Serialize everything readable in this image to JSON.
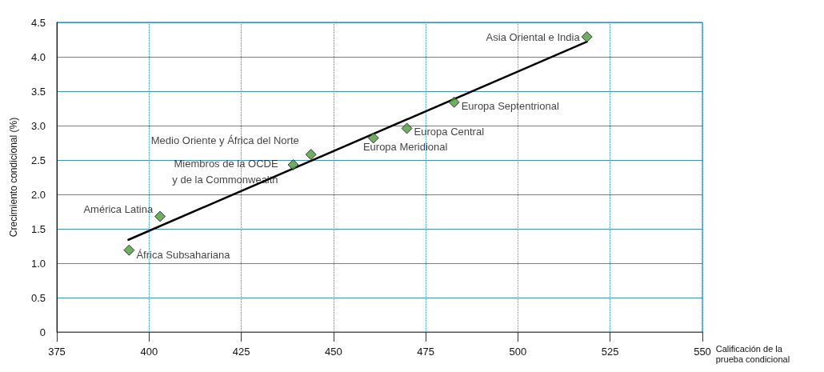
{
  "chart_data": {
    "type": "scatter",
    "xlabel": "Calificación de la\nprueba condicional",
    "ylabel": "Crecimiento condicional (%)",
    "series": [
      {
        "color": "#4a9a3a",
        "x": [
          394.6,
          403.0,
          439.1,
          443.9,
          460.8,
          469.9,
          482.7,
          518.7
        ],
        "values": [
          1.19,
          1.68,
          2.43,
          2.58,
          2.82,
          2.96,
          3.34,
          4.29
        ]
      },
      {
        "type": "line",
        "color": "#000000",
        "marker": "none",
        "x": [
          394.4,
          518.7
        ],
        "values": [
          1.34,
          4.22
        ]
      }
    ],
    "annotations": [
      {
        "text": "África Subsahariana",
        "x": 394.6,
        "y": 1.19
      },
      {
        "text": "América Latina",
        "x": 403.0,
        "y": 1.68
      },
      {
        "text": "Miembros de la OCDE\ny de la Commonwealth",
        "x": 439.1,
        "y": 2.43
      },
      {
        "text": "Medio Oriente y África del Norte",
        "x": 443.9,
        "y": 2.58
      },
      {
        "text": "Europa Meridional",
        "x": 460.8,
        "y": 2.82
      },
      {
        "text": "Europa Central",
        "x": 469.9,
        "y": 2.96
      },
      {
        "text": "Europa Septentrional",
        "x": 482.7,
        "y": 3.34
      },
      {
        "text": "Asia Oriental e India",
        "x": 518.7,
        "y": 4.29
      }
    ],
    "xlim": [
      375,
      550
    ],
    "xticks": [
      375,
      400,
      425,
      450,
      475,
      500,
      525,
      550
    ],
    "ylim": [
      0,
      4.5
    ],
    "yticks": [
      0,
      0.5,
      {
        "value": 1,
        "label": "1.0"
      },
      1.5,
      {
        "value": 2,
        "label": "2.0"
      },
      2.5,
      {
        "value": 3,
        "label": "3.0"
      },
      3.5,
      {
        "value": 4,
        "label": "4.0"
      },
      4.5
    ],
    "marker": "diamond",
    "grid": true
  }
}
